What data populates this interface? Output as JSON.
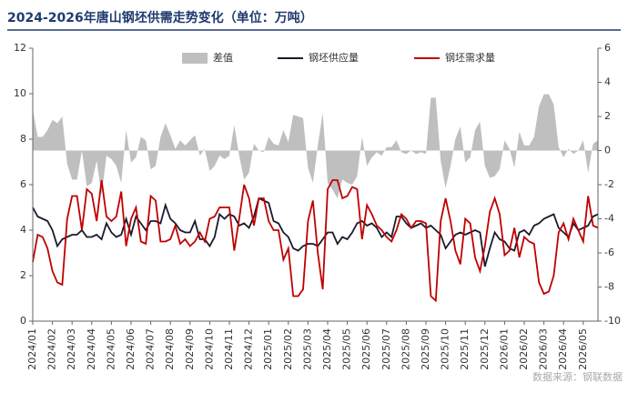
{
  "chart_data": {
    "type": "line",
    "title": "2024-2026年唐山钢坯供需走势变化（单位：万吨）",
    "source": "数据来源：钢联数据",
    "categories": [
      "2024/01",
      null,
      null,
      null,
      "2024/02",
      null,
      null,
      null,
      "2024/03",
      null,
      null,
      null,
      "2024/04",
      null,
      null,
      null,
      "2024/05",
      null,
      null,
      null,
      "2024/06",
      null,
      null,
      null,
      "2024/07",
      null,
      null,
      null,
      "2024/08",
      null,
      null,
      null,
      "2024/09",
      null,
      null,
      null,
      "2024/10",
      null,
      null,
      null,
      "2024/11",
      null,
      null,
      null,
      "2024/12",
      null,
      null,
      null,
      "2025/01",
      null,
      null,
      null,
      "2025/02",
      null,
      null,
      null,
      "2025/03",
      null,
      null,
      null,
      "2025/04",
      null,
      null,
      null,
      "2025/05",
      null,
      null,
      null,
      "2025/06",
      null,
      null,
      null,
      "2025/07",
      null,
      null,
      null,
      "2025/08",
      null,
      null,
      null,
      "2025/09",
      null,
      null,
      null,
      "2025/10",
      null,
      null,
      null,
      "2025/11",
      null,
      null,
      null,
      "2025/12",
      null,
      null,
      null,
      "2026/01",
      null,
      null,
      null,
      "2026/02",
      null,
      null,
      null,
      "2026/03",
      null,
      null,
      null,
      "2026/04",
      null,
      null,
      null,
      "2026/05",
      null,
      null,
      null
    ],
    "ylim": [
      0,
      12
    ],
    "yticks": [
      0,
      2,
      4,
      6,
      8,
      10,
      12
    ],
    "y2lim": [
      -10,
      6
    ],
    "y2ticks": [
      -10,
      -8,
      -6,
      -4,
      -2,
      0,
      2,
      4,
      6
    ],
    "grid": false,
    "series": [
      {
        "name": "差值",
        "color": "#bfbfbf",
        "axis": "y2",
        "type": "area",
        "values": [
          2.4,
          0.8,
          0.8,
          1.2,
          1.8,
          1.6,
          2.0,
          -0.8,
          -1.7,
          -1.7,
          0,
          -2.1,
          -1.9,
          -0.6,
          -2.6,
          -0.3,
          -0.5,
          -0.9,
          -1.9,
          1.2,
          -0.7,
          -0.4,
          0.8,
          0.6,
          -1.1,
          -0.9,
          0.8,
          1.6,
          0.9,
          0.1,
          0.6,
          0.3,
          0.6,
          0.9,
          -0.3,
          0.1,
          -1.2,
          -0.9,
          -0.3,
          -0.5,
          -0.3,
          1.5,
          -0.3,
          -1.7,
          -1.3,
          0.4,
          0,
          -0.1,
          0.8,
          0.4,
          0.3,
          1.2,
          0.5,
          2.1,
          2.0,
          1.9,
          -1.0,
          -1.9,
          0.3,
          2.2,
          -1.9,
          -2.3,
          -2.8,
          -1.7,
          -1.9,
          -2.0,
          -1.5,
          0.8,
          -0.9,
          -0.4,
          -0.1,
          -0.3,
          0.2,
          0.2,
          0.6,
          -0.1,
          -0.2,
          0,
          -0.2,
          -0.1,
          -0.2,
          3.1,
          3.1,
          -0.6,
          -2.2,
          -0.9,
          0.7,
          1.4,
          -0.7,
          -0.4,
          1.2,
          1.7,
          -0.9,
          -1.6,
          -1.5,
          -1.1,
          0.6,
          0.1,
          -1.0,
          1.1,
          0.3,
          0.3,
          0.8,
          2.6,
          3.3,
          3.3,
          2.7,
          0.2,
          -0.4,
          0.1,
          -0.2,
          0,
          0.6,
          -1.3,
          0.4,
          0.6
        ]
      },
      {
        "name": "钢坯供应量",
        "color": "#1a1a2e",
        "type": "line",
        "values": [
          5.0,
          4.6,
          4.5,
          4.4,
          4.0,
          3.3,
          3.6,
          3.7,
          3.8,
          3.8,
          4.0,
          3.7,
          3.7,
          3.8,
          3.6,
          4.3,
          3.9,
          3.7,
          3.8,
          4.5,
          3.8,
          4.6,
          4.3,
          4.0,
          4.4,
          4.4,
          4.3,
          5.1,
          4.5,
          4.3,
          4.0,
          3.9,
          3.9,
          4.4,
          3.6,
          3.6,
          3.3,
          3.7,
          4.7,
          4.5,
          4.7,
          4.6,
          4.2,
          4.3,
          4.1,
          4.6,
          5.4,
          5.3,
          5.2,
          4.4,
          4.3,
          3.9,
          3.7,
          3.2,
          3.1,
          3.3,
          3.4,
          3.4,
          3.3,
          3.6,
          3.9,
          3.9,
          3.4,
          3.7,
          3.6,
          3.9,
          4.3,
          4.4,
          4.2,
          4.3,
          4.1,
          3.7,
          3.9,
          3.7,
          4.6,
          4.6,
          4.3,
          4.1,
          4.2,
          4.3,
          4.1,
          4.2,
          4.0,
          3.8,
          3.2,
          3.5,
          3.8,
          3.9,
          3.8,
          3.9,
          4.0,
          3.9,
          2.4,
          3.2,
          3.9,
          3.6,
          3.5,
          3.2,
          3.1,
          3.9,
          4.0,
          3.8,
          4.2,
          4.3,
          4.5,
          4.6,
          4.7,
          4.1,
          3.9,
          3.7,
          4.3,
          4.0,
          4.1,
          4.2,
          4.6,
          4.7
        ]
      },
      {
        "name": "钢坯需求量",
        "color": "#c00000",
        "type": "line",
        "values": [
          2.6,
          3.8,
          3.7,
          3.2,
          2.2,
          1.7,
          1.6,
          4.5,
          5.5,
          5.5,
          4.0,
          5.8,
          5.6,
          4.4,
          6.2,
          4.6,
          4.4,
          4.6,
          5.7,
          3.3,
          4.5,
          5.0,
          3.5,
          3.4,
          5.5,
          5.3,
          3.5,
          3.5,
          3.6,
          4.2,
          3.4,
          3.6,
          3.3,
          3.5,
          3.9,
          3.5,
          4.5,
          4.6,
          5.0,
          5.0,
          5.0,
          3.1,
          4.5,
          6.0,
          5.4,
          4.2,
          5.4,
          5.4,
          4.4,
          4.0,
          4.0,
          2.7,
          3.2,
          1.1,
          1.1,
          1.4,
          4.4,
          5.3,
          3.0,
          1.4,
          5.8,
          6.2,
          6.2,
          5.4,
          5.5,
          5.9,
          5.8,
          3.6,
          5.1,
          4.7,
          4.2,
          4.0,
          3.7,
          3.5,
          4.0,
          4.7,
          4.5,
          4.1,
          4.4,
          4.4,
          4.3,
          1.1,
          0.9,
          4.4,
          5.4,
          4.4,
          3.1,
          2.5,
          4.5,
          4.3,
          2.8,
          2.2,
          3.3,
          4.8,
          5.4,
          4.7,
          2.9,
          3.1,
          4.1,
          2.8,
          3.7,
          3.5,
          3.4,
          1.7,
          1.2,
          1.3,
          2.0,
          3.9,
          4.3,
          3.6,
          4.5,
          4.0,
          3.5,
          5.5,
          4.2,
          4.1
        ]
      }
    ]
  }
}
